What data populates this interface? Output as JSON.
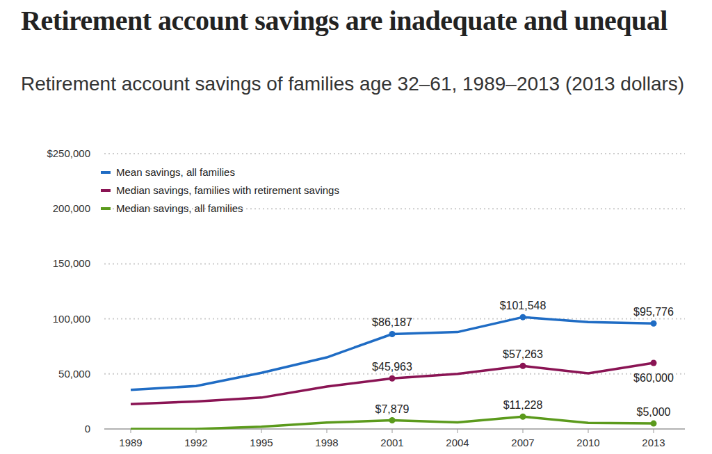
{
  "chart_data": {
    "type": "line",
    "title": "Retirement account savings are inadequate and unequal",
    "subtitle": "Retirement account savings of families age 32–61, 1989–2013 (2013 dollars)",
    "categories": [
      "1989",
      "1992",
      "1995",
      "1998",
      "2001",
      "2004",
      "2007",
      "2010",
      "2013"
    ],
    "series": [
      {
        "name": "Mean savings, all families",
        "color": "#1f6cc4",
        "values": [
          35500,
          39000,
          51000,
          65000,
          86187,
          88000,
          101548,
          97000,
          95776
        ],
        "value_labels": [
          null,
          null,
          null,
          null,
          "$86,187",
          null,
          "$101,548",
          null,
          "$95,776"
        ]
      },
      {
        "name": "Median savings, families with retirement savings",
        "color": "#8a1454",
        "values": [
          22500,
          25000,
          28500,
          38500,
          45963,
          50000,
          57263,
          50500,
          60000
        ],
        "value_labels": [
          null,
          null,
          null,
          null,
          "$45,963",
          null,
          "$57,263",
          null,
          "$60,000"
        ]
      },
      {
        "name": "Median savings, all families",
        "color": "#5b9a1c",
        "values": [
          0,
          0,
          2000,
          5800,
          7879,
          6000,
          11228,
          5500,
          5000
        ],
        "value_labels": [
          null,
          null,
          null,
          null,
          "$7,879",
          null,
          "$11,228",
          null,
          "$5,000"
        ]
      }
    ],
    "ylim": [
      0,
      250000
    ],
    "yticks": [
      0,
      {
        "value": 50000,
        "label": "50,000"
      },
      {
        "value": 100000,
        "label": "100,000"
      },
      {
        "value": 150000,
        "label": "150,000"
      },
      {
        "value": 200000,
        "label": "200,000"
      },
      {
        "value": 250000,
        "label": "$250,000"
      }
    ],
    "grid": true,
    "legend": "top-left",
    "data_labels": true,
    "marker": "circle"
  }
}
